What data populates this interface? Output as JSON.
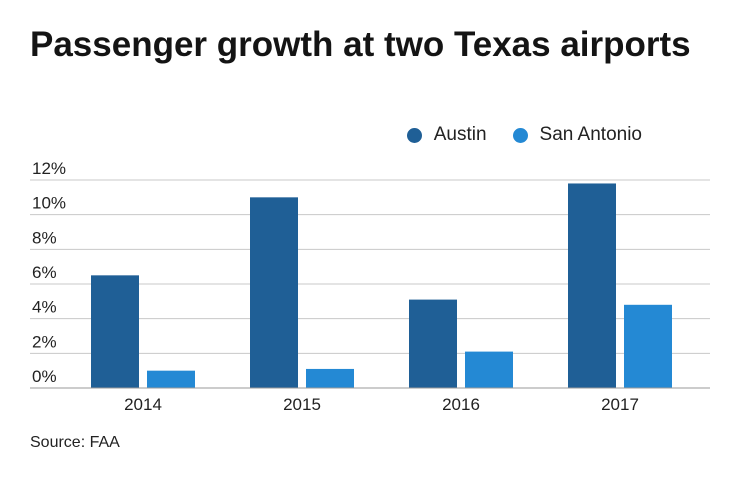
{
  "chart_data": {
    "type": "bar",
    "title": "Passenger growth at two Texas airports",
    "categories": [
      "2014",
      "2015",
      "2016",
      "2017"
    ],
    "series": [
      {
        "name": "Austin",
        "values": [
          6.5,
          11.0,
          5.1,
          11.8
        ],
        "color": "#1f5f96"
      },
      {
        "name": "San Antonio",
        "values": [
          1.0,
          1.1,
          2.1,
          4.8
        ],
        "color": "#2489d4"
      }
    ],
    "y_ticks": [
      "0%",
      "2%",
      "4%",
      "6%",
      "8%",
      "10%",
      "12%"
    ],
    "ylim": [
      0,
      12
    ],
    "grid": true,
    "legend": "top-right",
    "source": "Source: FAA"
  }
}
